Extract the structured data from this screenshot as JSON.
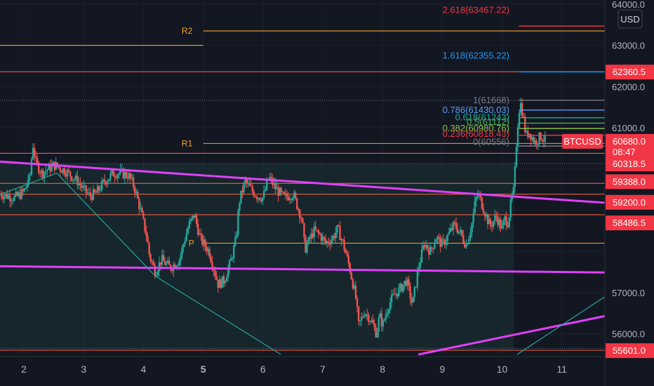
{
  "chart_data": {
    "type": "candlestick",
    "symbol": "BTCUSD",
    "currency": "USD",
    "ylim": [
      55450,
      64100
    ],
    "xlim": [
      1.6,
      11.72
    ],
    "y_ticks": [
      "64000.0",
      "63000.0",
      "62000.0",
      "61000.0",
      "57000.0",
      "56000.0"
    ],
    "x_ticks": [
      {
        "label": "2",
        "x": 2,
        "bold": false
      },
      {
        "label": "3",
        "x": 3,
        "bold": false
      },
      {
        "label": "4",
        "x": 4,
        "bold": false
      },
      {
        "label": "5",
        "x": 5,
        "bold": true
      },
      {
        "label": "6",
        "x": 6,
        "bold": false
      },
      {
        "label": "7",
        "x": 7,
        "bold": false
      },
      {
        "label": "8",
        "x": 8,
        "bold": false
      },
      {
        "label": "9",
        "x": 9,
        "bold": false
      },
      {
        "label": "10",
        "x": 10,
        "bold": false
      },
      {
        "label": "11",
        "x": 11,
        "bold": false
      }
    ],
    "price_badges": [
      {
        "value": "62360.5",
        "price": 62360.5,
        "color": "#f23645"
      },
      {
        "value": "60680.0",
        "price": 60680,
        "color": "#f23645",
        "symbol": true
      },
      {
        "value": "08:47",
        "price": 60420,
        "color": "#f23645"
      },
      {
        "value": "60318.5",
        "price": 60130,
        "color": "#f23645"
      },
      {
        "value": "59388.0",
        "price": 59700,
        "color": "#f23645"
      },
      {
        "value": "59200.0",
        "price": 59200,
        "color": "#f23645"
      },
      {
        "value": "58486.5",
        "price": 58700,
        "color": "#f23645"
      },
      {
        "value": "55601.0",
        "price": 55601,
        "color": "#f23645"
      }
    ],
    "horizontal_levels": [
      {
        "price": 63350,
        "x_from": 5.0,
        "x_to": 11.72,
        "color": "#f7a325",
        "label": "R2",
        "label_x": 4.82
      },
      {
        "price": 63000,
        "x_from": 1.6,
        "x_to": 5.0,
        "color": "#f7a325"
      },
      {
        "price": 62360.5,
        "x_from": 1.6,
        "x_to": 11.72,
        "color": "#f25c3c"
      },
      {
        "price": 60620,
        "x_from": 5.0,
        "x_to": 11.72,
        "color": "#f7a325",
        "label": "R1",
        "label_x": 4.82
      },
      {
        "price": 60380,
        "x_from": 1.6,
        "x_to": 11.72,
        "color": "#f25c3c"
      },
      {
        "price": 59650,
        "x_from": 1.6,
        "x_to": 11.72,
        "color": "#f25c3c"
      },
      {
        "price": 59388,
        "x_from": 1.6,
        "x_to": 11.72,
        "color": "#f25c3c"
      },
      {
        "price": 58890,
        "x_from": 1.6,
        "x_to": 11.72,
        "color": "#f25c3c"
      },
      {
        "price": 58200,
        "x_from": 5.0,
        "x_to": 11.72,
        "color": "#f7a325",
        "label": "P",
        "label_x": 4.85
      },
      {
        "price": 55601,
        "x_from": 1.6,
        "x_to": 11.72,
        "color": "#f25c3c"
      }
    ],
    "fibonacci": {
      "x_from": 10.28,
      "x_to": 11.72,
      "levels": [
        {
          "ratio": "2.618",
          "price": 63467.22,
          "label": "2.618(63467.22)",
          "color": "#f23645",
          "label_price": 63850
        },
        {
          "ratio": "1.618",
          "price": 62355.22,
          "label": "1.618(62355.22)",
          "color": "#2196f3",
          "label_price": 62750
        },
        {
          "ratio": "1",
          "price": 61668,
          "label": "1(61668)",
          "color": "#787b86",
          "label_price": 61668
        },
        {
          "ratio": "0.786",
          "price": 61430.03,
          "label": "0.786(61430.03)",
          "color": "#5b9cf6",
          "label_price": 61430
        },
        {
          "ratio": "0.618",
          "price": 61243,
          "label": "0.618(61243)",
          "color": "#22ab94",
          "label_price": 61250
        },
        {
          "ratio": "0.5",
          "price": 61112,
          "label": "0.5(61112)",
          "color": "#4caf50",
          "label_price": 61140
        },
        {
          "ratio": "0.382",
          "price": 60980.76,
          "label": "0.382(60980.76)",
          "color": "#8bc34a",
          "label_price": 60980
        },
        {
          "ratio": "0.236",
          "price": 60818.43,
          "label": "0.236(60818.43)",
          "color": "#f23645",
          "label_price": 60850
        },
        {
          "ratio": "0",
          "price": 60556,
          "label": "0(60556)",
          "color": "#787b86",
          "label_price": 60650
        }
      ]
    },
    "trendlines": [
      {
        "points": [
          [
            1.6,
            60180
          ],
          [
            11.72,
            59180
          ]
        ],
        "color": "#e040fb",
        "width": 3
      },
      {
        "points": [
          [
            1.6,
            57640
          ],
          [
            11.72,
            57490
          ]
        ],
        "color": "#e040fb",
        "width": 3
      },
      {
        "points": [
          [
            8.6,
            55500
          ],
          [
            11.72,
            56430
          ]
        ],
        "color": "#e040fb",
        "width": 3
      },
      {
        "points": [
          [
            1.6,
            59380
          ],
          [
            2.55,
            59900
          ],
          [
            4.2,
            57400
          ],
          [
            6.3,
            55500
          ]
        ],
        "color": "#26a69a",
        "width": 1.2
      },
      {
        "points": [
          [
            10.25,
            55500
          ],
          [
            11.72,
            56900
          ]
        ],
        "color": "#26a69a",
        "width": 1.2
      }
    ],
    "channel_band": {
      "top_price": 60130,
      "bottom_price": 55601,
      "x_from": 1.6,
      "x_to": 10.2
    },
    "dotted_levels": [
      61668,
      60130,
      55650
    ],
    "price_path": [
      [
        1.6,
        59400
      ],
      [
        1.85,
        59300
      ],
      [
        2.0,
        59450
      ],
      [
        2.1,
        59800
      ],
      [
        2.15,
        60600
      ],
      [
        2.2,
        60150
      ],
      [
        2.3,
        59900
      ],
      [
        2.5,
        60100
      ],
      [
        2.7,
        59950
      ],
      [
        2.9,
        59700
      ],
      [
        3.0,
        59500
      ],
      [
        3.1,
        59350
      ],
      [
        3.2,
        59400
      ],
      [
        3.35,
        59700
      ],
      [
        3.5,
        59900
      ],
      [
        3.6,
        59900
      ],
      [
        3.75,
        59850
      ],
      [
        3.85,
        59550
      ],
      [
        3.95,
        59000
      ],
      [
        4.05,
        58400
      ],
      [
        4.1,
        57900
      ],
      [
        4.2,
        57500
      ],
      [
        4.3,
        57800
      ],
      [
        4.45,
        57600
      ],
      [
        4.6,
        57800
      ],
      [
        4.75,
        58600
      ],
      [
        4.85,
        58900
      ],
      [
        4.95,
        58300
      ],
      [
        5.1,
        58000
      ],
      [
        5.25,
        57200
      ],
      [
        5.35,
        57300
      ],
      [
        5.45,
        57700
      ],
      [
        5.55,
        58300
      ],
      [
        5.6,
        59200
      ],
      [
        5.7,
        59700
      ],
      [
        5.8,
        59500
      ],
      [
        5.9,
        59350
      ],
      [
        6.0,
        59300
      ],
      [
        6.1,
        59800
      ],
      [
        6.2,
        59550
      ],
      [
        6.35,
        59300
      ],
      [
        6.5,
        59400
      ],
      [
        6.65,
        58800
      ],
      [
        6.7,
        58050
      ],
      [
        6.85,
        58500
      ],
      [
        6.95,
        58400
      ],
      [
        7.05,
        58200
      ],
      [
        7.15,
        58300
      ],
      [
        7.25,
        58550
      ],
      [
        7.35,
        58150
      ],
      [
        7.45,
        57600
      ],
      [
        7.55,
        56900
      ],
      [
        7.6,
        56200
      ],
      [
        7.7,
        56550
      ],
      [
        7.8,
        56350
      ],
      [
        7.9,
        56000
      ],
      [
        7.95,
        56450
      ],
      [
        8.0,
        56200
      ],
      [
        8.1,
        56700
      ],
      [
        8.2,
        56950
      ],
      [
        8.3,
        57100
      ],
      [
        8.4,
        57300
      ],
      [
        8.5,
        56700
      ],
      [
        8.6,
        57600
      ],
      [
        8.7,
        58200
      ],
      [
        8.8,
        58000
      ],
      [
        8.9,
        58350
      ],
      [
        9.0,
        58150
      ],
      [
        9.1,
        58400
      ],
      [
        9.2,
        58650
      ],
      [
        9.3,
        58450
      ],
      [
        9.4,
        58150
      ],
      [
        9.5,
        58700
      ],
      [
        9.55,
        59200
      ],
      [
        9.6,
        59400
      ],
      [
        9.7,
        59000
      ],
      [
        9.8,
        58600
      ],
      [
        9.9,
        58850
      ],
      [
        10.0,
        58550
      ],
      [
        10.05,
        58800
      ],
      [
        10.1,
        58700
      ],
      [
        10.15,
        59200
      ],
      [
        10.2,
        59500
      ],
      [
        10.25,
        60900
      ],
      [
        10.3,
        61650
      ],
      [
        10.35,
        61300
      ],
      [
        10.4,
        60800
      ],
      [
        10.45,
        60900
      ],
      [
        10.55,
        60650
      ],
      [
        10.65,
        60800
      ],
      [
        10.72,
        60680
      ]
    ]
  }
}
